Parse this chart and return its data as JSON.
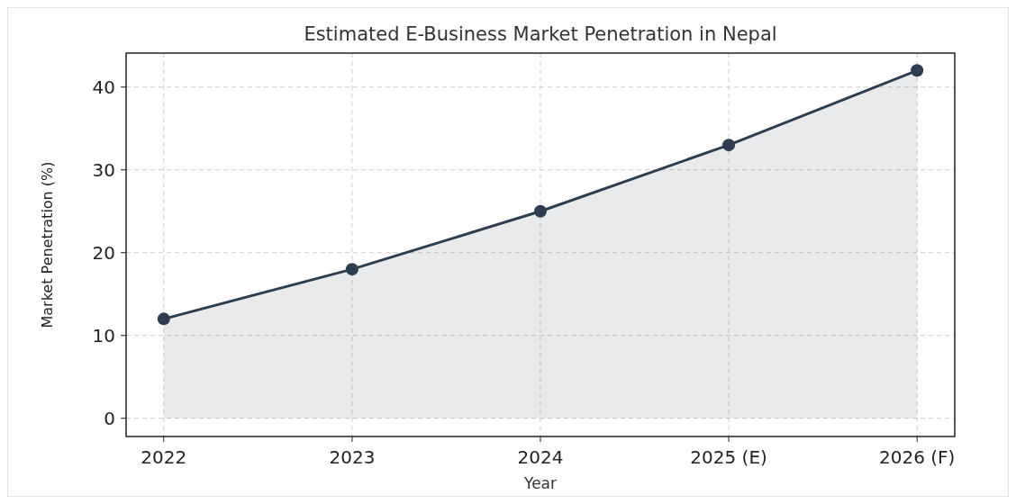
{
  "chart_data": {
    "type": "area",
    "title": "Estimated E-Business Market Penetration in Nepal",
    "xlabel": "Year",
    "ylabel": "Market Penetration (%)",
    "categories": [
      "2022",
      "2023",
      "2024",
      "2025 (E)",
      "2026 (F)"
    ],
    "series": [
      {
        "color": "#2c3e50",
        "values": [
          12,
          18,
          25,
          33,
          42
        ]
      }
    ],
    "ylim": [
      -2.2,
      44.1
    ],
    "yticks": [
      0,
      10,
      20,
      30,
      40
    ],
    "grid": true,
    "marker": "circle",
    "line_style": "solid"
  }
}
